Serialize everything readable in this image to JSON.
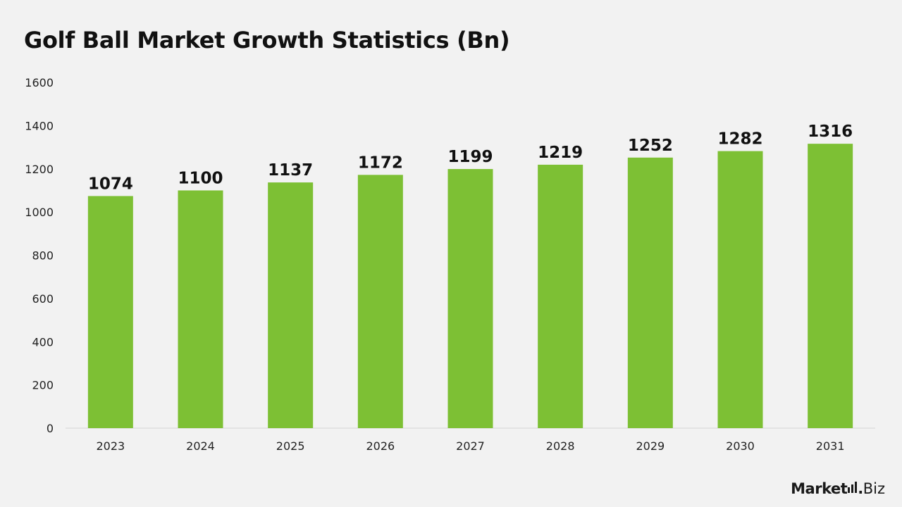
{
  "chart_data": {
    "type": "bar",
    "title": "Golf Ball Market Growth Statistics (Bn)",
    "categories": [
      "2023",
      "2024",
      "2025",
      "2026",
      "2027",
      "2028",
      "2029",
      "2030",
      "2031"
    ],
    "values": [
      1074,
      1100,
      1137,
      1172,
      1199,
      1219,
      1252,
      1282,
      1316
    ],
    "ylim": [
      0,
      1600
    ],
    "yticks": [
      0,
      200,
      400,
      600,
      800,
      1000,
      1200,
      1400,
      1600
    ],
    "xlabel": "",
    "ylabel": "",
    "grid": false,
    "legend": "none",
    "bar_color": "#7dc034",
    "data_labels": true
  },
  "branding": {
    "logo_main": "Market",
    "logo_suffix": "Biz",
    "logo_dot": "."
  }
}
